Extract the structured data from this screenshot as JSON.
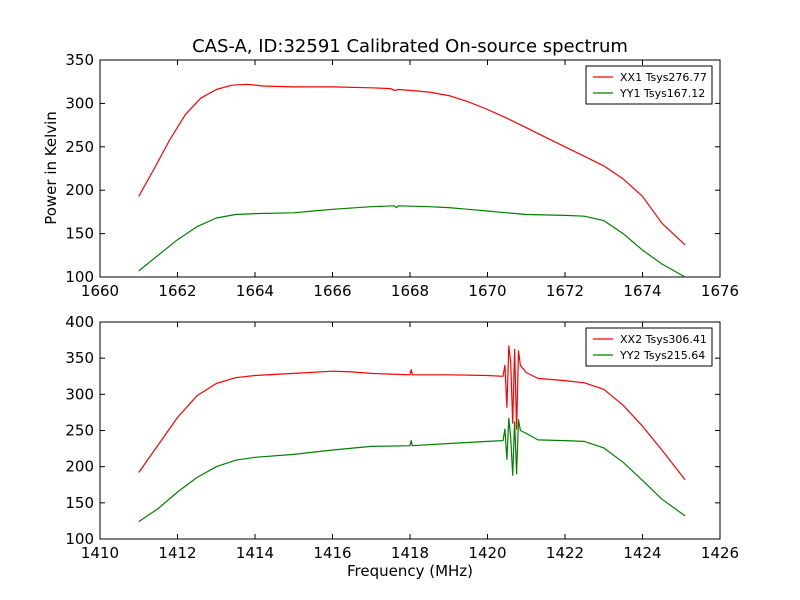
{
  "figure": {
    "title": "CAS-A, ID:32591 Calibrated On-source spectrum",
    "ylabel": "Power in Kelvin",
    "xlabel": "Frequency (MHz)"
  },
  "chart_data": [
    {
      "type": "line",
      "xlim": [
        1660,
        1676
      ],
      "ylim": [
        100,
        350
      ],
      "xticks": [
        "1660",
        "1662",
        "1664",
        "1666",
        "1668",
        "1670",
        "1672",
        "1674",
        "1676"
      ],
      "yticks": [
        "100",
        "150",
        "200",
        "250",
        "300",
        "350"
      ],
      "legend_position": "top-right",
      "series": [
        {
          "name": "XX1 Tsys276.77",
          "color": "#ff0000",
          "points": [
            [
              1661.0,
              193
            ],
            [
              1661.4,
              225
            ],
            [
              1661.8,
              258
            ],
            [
              1662.2,
              287
            ],
            [
              1662.6,
              306
            ],
            [
              1663.0,
              316
            ],
            [
              1663.4,
              321
            ],
            [
              1663.8,
              322
            ],
            [
              1664.2,
              320
            ],
            [
              1665.0,
              319
            ],
            [
              1666.0,
              319
            ],
            [
              1667.0,
              318
            ],
            [
              1667.5,
              317
            ],
            [
              1667.6,
              315
            ],
            [
              1667.7,
              316
            ],
            [
              1668.0,
              315
            ],
            [
              1668.5,
              313
            ],
            [
              1669.0,
              309
            ],
            [
              1669.5,
              302
            ],
            [
              1670.0,
              293
            ],
            [
              1670.5,
              283
            ],
            [
              1671.0,
              272
            ],
            [
              1671.5,
              261
            ],
            [
              1672.0,
              250
            ],
            [
              1672.5,
              239
            ],
            [
              1673.0,
              228
            ],
            [
              1673.5,
              213
            ],
            [
              1674.0,
              193
            ],
            [
              1674.5,
              162
            ],
            [
              1675.1,
              137
            ]
          ]
        },
        {
          "name": "YY1 Tsys167.12",
          "color": "#008000",
          "points": [
            [
              1661.0,
              107
            ],
            [
              1661.5,
              125
            ],
            [
              1662.0,
              143
            ],
            [
              1662.5,
              158
            ],
            [
              1663.0,
              168
            ],
            [
              1663.5,
              172
            ],
            [
              1664.0,
              173
            ],
            [
              1665.0,
              174
            ],
            [
              1665.5,
              176
            ],
            [
              1666.0,
              178
            ],
            [
              1667.0,
              181
            ],
            [
              1667.6,
              182
            ],
            [
              1667.65,
              180
            ],
            [
              1667.7,
              182
            ],
            [
              1668.5,
              181
            ],
            [
              1669.0,
              180
            ],
            [
              1669.5,
              178
            ],
            [
              1670.0,
              176
            ],
            [
              1670.5,
              174
            ],
            [
              1671.0,
              172
            ],
            [
              1672.0,
              171
            ],
            [
              1672.5,
              170
            ],
            [
              1673.0,
              165
            ],
            [
              1673.5,
              150
            ],
            [
              1674.0,
              131
            ],
            [
              1674.5,
              115
            ],
            [
              1675.1,
              100
            ]
          ]
        }
      ]
    },
    {
      "type": "line",
      "xlim": [
        1410,
        1426
      ],
      "ylim": [
        100,
        400
      ],
      "xticks": [
        "1410",
        "1412",
        "1414",
        "1416",
        "1418",
        "1420",
        "1422",
        "1424",
        "1426"
      ],
      "yticks": [
        "100",
        "150",
        "200",
        "250",
        "300",
        "350",
        "400"
      ],
      "legend_position": "top-right",
      "series": [
        {
          "name": "XX2 Tsys306.41",
          "color": "#ff0000",
          "points": [
            [
              1411.0,
              192
            ],
            [
              1411.5,
              230
            ],
            [
              1412.0,
              268
            ],
            [
              1412.5,
              298
            ],
            [
              1413.0,
              315
            ],
            [
              1413.5,
              323
            ],
            [
              1414.0,
              326
            ],
            [
              1415.0,
              329
            ],
            [
              1416.0,
              332
            ],
            [
              1416.5,
              331
            ],
            [
              1417.0,
              329
            ],
            [
              1417.5,
              328
            ],
            [
              1418.0,
              327
            ],
            [
              1418.03,
              334
            ],
            [
              1418.06,
              327
            ],
            [
              1419.0,
              327
            ],
            [
              1420.0,
              326
            ],
            [
              1420.4,
              325
            ],
            [
              1420.45,
              340
            ],
            [
              1420.5,
              282
            ],
            [
              1420.55,
              367
            ],
            [
              1420.6,
              345
            ],
            [
              1420.65,
              260
            ],
            [
              1420.7,
              362
            ],
            [
              1420.75,
              252
            ],
            [
              1420.8,
              360
            ],
            [
              1420.85,
              340
            ],
            [
              1421.0,
              330
            ],
            [
              1421.3,
              322
            ],
            [
              1422.0,
              319
            ],
            [
              1422.5,
              316
            ],
            [
              1423.0,
              307
            ],
            [
              1423.5,
              285
            ],
            [
              1424.0,
              256
            ],
            [
              1424.5,
              223
            ],
            [
              1425.1,
              182
            ]
          ]
        },
        {
          "name": "YY2 Tsys215.64",
          "color": "#008000",
          "points": [
            [
              1411.0,
              124
            ],
            [
              1411.5,
              142
            ],
            [
              1412.0,
              165
            ],
            [
              1412.5,
              185
            ],
            [
              1413.0,
              200
            ],
            [
              1413.5,
              209
            ],
            [
              1414.0,
              213
            ],
            [
              1415.0,
              217
            ],
            [
              1416.0,
              223
            ],
            [
              1417.0,
              228
            ],
            [
              1418.0,
              229
            ],
            [
              1418.03,
              236
            ],
            [
              1418.06,
              229
            ],
            [
              1419.0,
              232
            ],
            [
              1420.0,
              235
            ],
            [
              1420.4,
              236
            ],
            [
              1420.45,
              252
            ],
            [
              1420.5,
              210
            ],
            [
              1420.55,
              267
            ],
            [
              1420.6,
              240
            ],
            [
              1420.65,
              188
            ],
            [
              1420.7,
              262
            ],
            [
              1420.75,
              190
            ],
            [
              1420.8,
              265
            ],
            [
              1420.85,
              250
            ],
            [
              1421.0,
              246
            ],
            [
              1421.3,
              237
            ],
            [
              1422.0,
              236
            ],
            [
              1422.5,
              235
            ],
            [
              1423.0,
              226
            ],
            [
              1423.5,
              206
            ],
            [
              1424.0,
              181
            ],
            [
              1424.5,
              155
            ],
            [
              1425.1,
              132
            ]
          ]
        }
      ]
    }
  ]
}
